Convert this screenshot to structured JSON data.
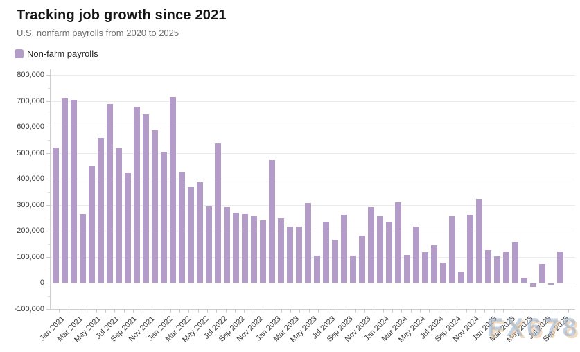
{
  "header": {
    "title": "Tracking job growth since 2021",
    "subtitle": "U.S. nonfarm payrolls from 2020 to 2025"
  },
  "legend": {
    "items": [
      {
        "label": "Non-farm payrolls",
        "color": "#b49cc8"
      }
    ]
  },
  "watermark": {
    "text": "FX678"
  },
  "colors": {
    "bar": "#b49cc8",
    "grid": "#ebebeb",
    "zero_line": "#d4d4d4",
    "axis": "#cfcfcf",
    "axis_text": "#3c3c3c",
    "title_text": "#161616",
    "subtitle_text": "#6e6e6e"
  },
  "chart_data": {
    "type": "bar",
    "title": "Tracking job growth since 2021",
    "subtitle": "U.S. nonfarm payrolls from 2020 to 2025",
    "series_name": "Non-farm payrolls",
    "unit": "jobs added (monthly change)",
    "legend_position": "top-left",
    "grid": true,
    "bar_color": "#b49cc8",
    "categories": [
      "Jan 2021",
      "Feb 2021",
      "Mar 2021",
      "Apr 2021",
      "May 2021",
      "Jun 2021",
      "Jul 2021",
      "Aug 2021",
      "Sep 2021",
      "Oct 2021",
      "Nov 2021",
      "Dec 2021",
      "Jan 2022",
      "Feb 2022",
      "Mar 2022",
      "Apr 2022",
      "May 2022",
      "Jun 2022",
      "Jul 2022",
      "Aug 2022",
      "Sep 2022",
      "Oct 2022",
      "Nov 2022",
      "Dec 2022",
      "Jan 2023",
      "Feb 2023",
      "Mar 2023",
      "Apr 2023",
      "May 2023",
      "Jun 2023",
      "Jul 2023",
      "Aug 2023",
      "Sep 2023",
      "Oct 2023",
      "Nov 2023",
      "Dec 2023",
      "Jan 2024",
      "Feb 2024",
      "Mar 2024",
      "Apr 2024",
      "May 2024",
      "Jun 2024",
      "Jul 2024",
      "Aug 2024",
      "Sep 2024",
      "Oct 2024",
      "Nov 2024",
      "Dec 2024",
      "Jan 2025",
      "Feb 2025",
      "Mar 2025",
      "Apr 2025",
      "May 2025",
      "Jun 2025",
      "Jul 2025",
      "Aug 2025",
      "Sep 2025"
    ],
    "values": [
      520000,
      710000,
      704000,
      263000,
      447000,
      557000,
      689000,
      517000,
      424000,
      677000,
      647000,
      588000,
      504000,
      714000,
      428000,
      368000,
      386000,
      293000,
      537000,
      292000,
      269000,
      263000,
      256000,
      239000,
      472000,
      248000,
      217000,
      217000,
      306000,
      105000,
      236000,
      165000,
      262000,
      105000,
      182000,
      290000,
      256000,
      236000,
      310000,
      108000,
      216000,
      118000,
      144000,
      78000,
      255000,
      44000,
      261000,
      323000,
      125000,
      102000,
      120000,
      158000,
      19000,
      -13000,
      72000,
      -4000,
      119000
    ],
    "y_axis": {
      "min": -100000,
      "max": 800000,
      "step": 100000,
      "minor_step": 50000,
      "tick_labels": [
        "800,000",
        "700,000",
        "600,000",
        "500,000",
        "400,000",
        "300,000",
        "200,000",
        "100,000",
        "0",
        "-100,000"
      ]
    },
    "x_axis": {
      "label_every": 2,
      "labels": [
        "Jan 2021",
        "Mar 2021",
        "May 2021",
        "Jul 2021",
        "Sep 2021",
        "Nov 2021",
        "Jan 2022",
        "Mar 2022",
        "May 2022",
        "Jul 2022",
        "Sep 2022",
        "Nov 2022",
        "Jan 2023",
        "Mar 2023",
        "May 2023",
        "Jul 2023",
        "Sep 2023",
        "Nov 2023",
        "Jan 2024",
        "Mar 2024",
        "May 2024",
        "Jul 2024",
        "Sep 2024",
        "Nov 2024",
        "Jan 2025",
        "Mar 2025",
        "May 2025",
        "Jul 2025",
        "Sep 2025"
      ]
    }
  }
}
